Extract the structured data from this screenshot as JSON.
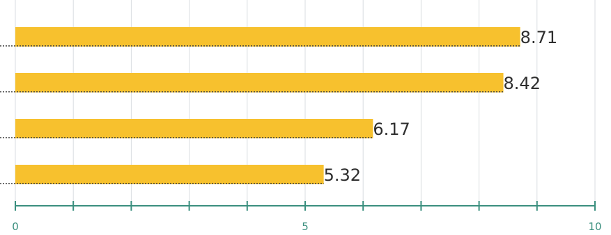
{
  "chart_data": {
    "type": "bar",
    "orientation": "horizontal",
    "values": [
      8.71,
      8.42,
      6.17,
      5.32
    ],
    "value_labels": [
      "8.71",
      "8.42",
      "6.17",
      "5.32"
    ],
    "xlim": [
      0,
      10
    ],
    "major_ticks": [
      0,
      5,
      10
    ],
    "tick_labels": [
      "0",
      "5",
      "10"
    ],
    "minor_tick_step": 1,
    "grid": true,
    "colors": {
      "bar": "#f7c12e",
      "axis": "#3a8f7e",
      "grid": "#d9dde0",
      "label": "#2e2e2e"
    }
  }
}
